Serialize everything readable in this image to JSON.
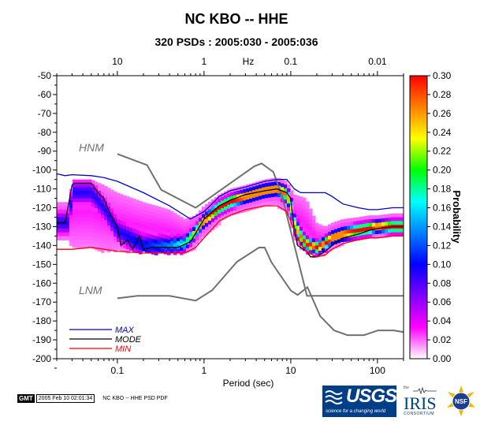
{
  "chart_data": {
    "type": "heatmap",
    "title": "NC KBO -- HHE",
    "subtitle": "320 PSDs : 2005:030 - 2005:036",
    "xlabel": "Period (sec)",
    "top_axis_unit": "Hz",
    "colorbar_label": "Probability",
    "xscale": "log",
    "xlim": [
      0.02,
      200
    ],
    "ylim": [
      -200,
      -50
    ],
    "x_ticks": [
      {
        "value": 0.1,
        "label": "0.1"
      },
      {
        "value": 1,
        "label": "1"
      },
      {
        "value": 10,
        "label": "10"
      },
      {
        "value": 100,
        "label": "100"
      }
    ],
    "top_ticks": [
      {
        "value": 0.1,
        "label": "10"
      },
      {
        "value": 1,
        "label": "1"
      },
      {
        "value": 10,
        "label": "0.1"
      },
      {
        "value": 100,
        "label": "0.01"
      }
    ],
    "y_ticks": [
      {
        "value": -50,
        "label": "-50"
      },
      {
        "value": -60,
        "label": "-60"
      },
      {
        "value": -70,
        "label": "-70"
      },
      {
        "value": -80,
        "label": "-80"
      },
      {
        "value": -90,
        "label": "-90"
      },
      {
        "value": -100,
        "label": "-100"
      },
      {
        "value": -110,
        "label": "-110"
      },
      {
        "value": -120,
        "label": "-120"
      },
      {
        "value": -130,
        "label": "-130"
      },
      {
        "value": -140,
        "label": "-140"
      },
      {
        "value": -150,
        "label": "-150"
      },
      {
        "value": -160,
        "label": "-160"
      },
      {
        "value": -170,
        "label": "-170"
      },
      {
        "value": -180,
        "label": "-180"
      },
      {
        "value": -190,
        "label": "-190"
      },
      {
        "value": -200,
        "label": "-200"
      }
    ],
    "colorbar": {
      "range": [
        0.0,
        0.3
      ],
      "ticks": [
        "0.00",
        "0.02",
        "0.04",
        "0.06",
        "0.08",
        "0.10",
        "0.12",
        "0.14",
        "0.16",
        "0.18",
        "0.20",
        "0.22",
        "0.24",
        "0.26",
        "0.28",
        "0.30"
      ],
      "colors": [
        "#ffffff",
        "#ff00ff",
        "#8000ff",
        "#0000ff",
        "#0080ff",
        "#00ffff",
        "#00ff00",
        "#ffff00",
        "#ff8000",
        "#ff0000"
      ]
    },
    "series": [
      {
        "name": "HNM",
        "color": "#707070",
        "x": [
          0.1,
          0.22,
          0.32,
          0.8,
          3.8,
          4.6,
          6.3,
          7.9,
          15.4,
          20,
          354
        ],
        "y": [
          -91.5,
          -97.4,
          -110.5,
          -120,
          -98,
          -96.5,
          -101,
          -113.5,
          -166.7,
          -166.7,
          -166.7
        ]
      },
      {
        "name": "LNM",
        "color": "#707070",
        "x": [
          0.1,
          0.17,
          0.4,
          0.8,
          1.24,
          2.4,
          4.3,
          5,
          6,
          10,
          12,
          15.6,
          21.9,
          31.6,
          45,
          70,
          101,
          154,
          328
        ],
        "y": [
          -168,
          -166.7,
          -166.7,
          -169.2,
          -163.7,
          -148.6,
          -141.1,
          -141.1,
          -149,
          -163.8,
          -166.2,
          -162.1,
          -177.5,
          -185,
          -187.5,
          -187.5,
          -185,
          -185,
          -187.5
        ]
      },
      {
        "name": "MAX",
        "color": "#0000cc",
        "x": [
          0.02,
          0.025,
          0.03,
          0.05,
          0.07,
          0.1,
          0.2,
          0.4,
          0.7,
          1,
          1.5,
          2,
          3,
          5,
          7,
          9,
          11,
          13,
          15,
          20,
          25,
          30,
          40,
          60,
          80,
          100,
          150,
          200
        ],
        "y": [
          -102,
          -103,
          -102.5,
          -103,
          -104,
          -106,
          -112,
          -119,
          -126,
          -122,
          -114,
          -111,
          -109,
          -106,
          -105,
          -105,
          -110,
          -112,
          -112,
          -112,
          -112,
          -114,
          -118,
          -120,
          -121,
          -121,
          -120,
          -120
        ]
      },
      {
        "name": "MODE",
        "color": "#000000",
        "x": [
          0.02,
          0.025,
          0.03,
          0.032,
          0.035,
          0.05,
          0.06,
          0.07,
          0.08,
          0.1,
          0.11,
          0.13,
          0.15,
          0.18,
          0.2,
          0.25,
          0.35,
          0.5,
          0.7,
          1,
          1.5,
          2,
          3,
          5,
          7,
          9,
          10,
          11,
          12,
          15,
          17,
          20,
          25,
          30,
          40,
          60,
          80,
          100,
          150,
          200
        ],
        "y": [
          -128,
          -128,
          -108,
          -107,
          -107,
          -107,
          -112,
          -115,
          -122,
          -130,
          -140,
          -137,
          -142,
          -135,
          -142,
          -141,
          -141,
          -141,
          -138,
          -126,
          -119,
          -116,
          -113,
          -111,
          -110,
          -112,
          -115,
          -132,
          -140,
          -143,
          -146,
          -146,
          -143,
          -140,
          -136,
          -134,
          -132,
          -131,
          -130,
          -130
        ]
      },
      {
        "name": "MIN",
        "color": "#ff0000",
        "x": [
          0.02,
          0.03,
          0.05,
          0.1,
          0.2,
          0.4,
          0.6,
          0.8,
          1,
          1.5,
          2,
          3,
          5,
          7,
          9,
          11,
          13,
          15,
          18,
          20,
          25,
          30,
          40,
          60,
          80,
          100,
          150,
          200
        ],
        "y": [
          -142,
          -142,
          -141,
          -143,
          -144,
          -144,
          -144,
          -141,
          -136,
          -127,
          -124,
          -121,
          -119,
          -119,
          -122,
          -132,
          -139,
          -143,
          -145,
          -146,
          -145,
          -142,
          -139,
          -137,
          -136,
          -136,
          -135,
          -135
        ]
      }
    ],
    "density": [
      [
        0.02,
        -117,
        -137,
        0.3,
        -128,
        4
      ],
      [
        0.028,
        -117,
        -137,
        0.3,
        -128,
        4
      ],
      [
        0.03,
        -105,
        -140,
        0.3,
        -112,
        4
      ],
      [
        0.05,
        -105,
        -140,
        0.3,
        -112,
        4
      ],
      [
        0.07,
        -108,
        -142,
        0.3,
        -120,
        4
      ],
      [
        0.1,
        -112,
        -142,
        0.3,
        -132,
        4
      ],
      [
        0.2,
        -117,
        -143,
        0.35,
        -140,
        4
      ],
      [
        0.4,
        -121,
        -143,
        0.45,
        -140,
        3
      ],
      [
        0.6,
        -126,
        -143,
        0.6,
        -139,
        2.5
      ],
      [
        0.8,
        -124,
        -140,
        0.8,
        -133,
        2
      ],
      [
        1,
        -119,
        -135,
        1,
        -127,
        2
      ],
      [
        1.5,
        -113,
        -127,
        1,
        -120,
        2
      ],
      [
        2,
        -110,
        -124,
        1,
        -117,
        2
      ],
      [
        3,
        -108,
        -121,
        1,
        -114,
        2
      ],
      [
        5,
        -105,
        -118,
        1,
        -111,
        2
      ],
      [
        7,
        -104,
        -118,
        1,
        -110,
        2
      ],
      [
        9,
        -106,
        -121,
        0.9,
        -113,
        2.5
      ],
      [
        10,
        -110,
        -127,
        0.8,
        -118,
        3
      ],
      [
        11,
        -113,
        -135,
        0.8,
        -128,
        3
      ],
      [
        13,
        -114,
        -140,
        0.9,
        -135,
        2.5
      ],
      [
        15,
        -115,
        -143,
        1,
        -139,
        2
      ],
      [
        20,
        -128,
        -145,
        1,
        -141,
        2
      ],
      [
        25,
        -130,
        -144,
        1,
        -139,
        2
      ],
      [
        30,
        -128,
        -141,
        1,
        -136,
        2
      ],
      [
        40,
        -126,
        -138,
        1,
        -134,
        2
      ],
      [
        60,
        -125,
        -136,
        1,
        -132,
        2
      ],
      [
        80,
        -124,
        -135,
        1,
        -131,
        2
      ],
      [
        100,
        -124,
        -135,
        1,
        -130,
        2
      ],
      [
        150,
        -123,
        -135,
        1,
        -130,
        2
      ],
      [
        200,
        -123,
        -135,
        1,
        -130,
        2
      ]
    ],
    "legend": {
      "entries": [
        {
          "label": "MAX",
          "color": "#0000cc",
          "text_color": "#0000cc"
        },
        {
          "label": "MODE",
          "color": "#000000",
          "text_color": "#000000"
        },
        {
          "label": "MIN",
          "color": "#ff0000",
          "text_color": "#ff0000"
        }
      ]
    }
  },
  "footer": {
    "gmt_label": "GMT",
    "timestamp": "2005 Feb 10 02:01:34",
    "file_label": "NC KBO -- HHE PSD PDF"
  },
  "logos": {
    "usgs": "USGS",
    "usgs_tagline": "science for a changing world",
    "iris": "IRIS",
    "iris_top": "the",
    "iris_bottom": "CONSORTIUM",
    "nsf": "NSF"
  }
}
